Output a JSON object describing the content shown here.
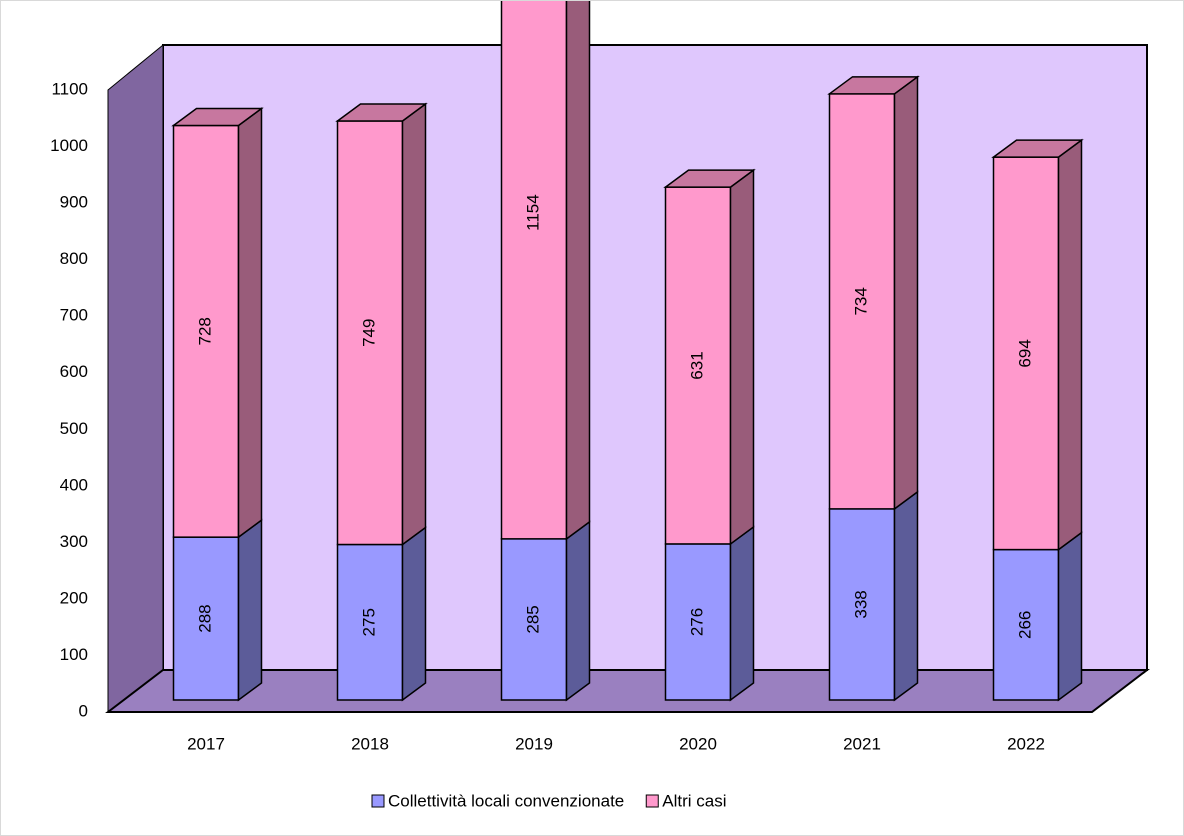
{
  "chart_data": {
    "type": "bar3d_stacked",
    "categories": [
      "2017",
      "2018",
      "2019",
      "2020",
      "2021",
      "2022"
    ],
    "series": [
      {
        "name": "Collettività locali convenzionate",
        "color": "#9999ff",
        "values": [
          288,
          275,
          285,
          276,
          338,
          266
        ]
      },
      {
        "name": "Altri casi",
        "color": "#ff99cc",
        "values": [
          728,
          749,
          1154,
          631,
          734,
          694
        ]
      }
    ],
    "ylim": [
      0,
      1100
    ],
    "yticks": [
      0,
      100,
      200,
      300,
      400,
      500,
      600,
      700,
      800,
      900,
      1000,
      1100
    ],
    "legend": "bottom"
  }
}
